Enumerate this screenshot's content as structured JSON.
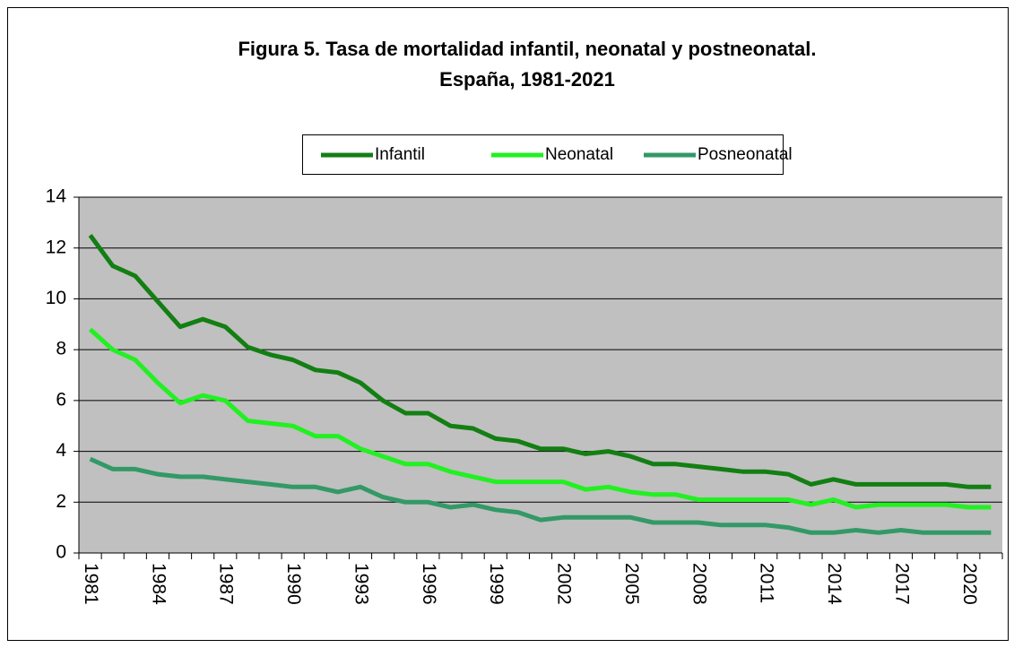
{
  "chart_data": {
    "type": "line",
    "title": [
      "Figura 5. Tasa de mortalidad infantil, neonatal y postneonatal.",
      "España, 1981-2021"
    ],
    "categories": [
      "1981",
      null,
      null,
      "1984",
      null,
      null,
      "1987",
      null,
      null,
      "1990",
      null,
      null,
      "1993",
      null,
      null,
      "1996",
      null,
      null,
      "1999",
      null,
      null,
      "2002",
      null,
      null,
      "2005",
      null,
      null,
      "2008",
      null,
      null,
      "2011",
      null,
      null,
      "2014",
      null,
      null,
      "2017",
      null,
      null,
      "2020",
      null
    ],
    "series": [
      {
        "name": "Infantil",
        "color": "#137f13",
        "values": [
          12.5,
          11.3,
          10.9,
          9.9,
          8.9,
          9.2,
          8.9,
          8.1,
          7.8,
          7.6,
          7.2,
          7.1,
          6.7,
          6.0,
          5.5,
          5.5,
          5.0,
          4.9,
          4.5,
          4.4,
          4.1,
          4.1,
          3.9,
          4.0,
          3.8,
          3.5,
          3.5,
          3.4,
          3.3,
          3.2,
          3.2,
          3.1,
          2.7,
          2.9,
          2.7,
          2.7,
          2.7,
          2.7,
          2.7,
          2.6,
          2.6
        ]
      },
      {
        "name": "Neonatal",
        "color": "#22f022",
        "values": [
          8.8,
          8.0,
          7.6,
          6.7,
          5.9,
          6.2,
          6.0,
          5.2,
          5.1,
          5.0,
          4.6,
          4.6,
          4.1,
          3.8,
          3.5,
          3.5,
          3.2,
          3.0,
          2.8,
          2.8,
          2.8,
          2.8,
          2.5,
          2.6,
          2.4,
          2.3,
          2.3,
          2.1,
          2.1,
          2.1,
          2.1,
          2.1,
          1.9,
          2.1,
          1.8,
          1.9,
          1.9,
          1.9,
          1.9,
          1.8,
          1.8
        ]
      },
      {
        "name": "Posneonatal",
        "color": "#339966",
        "values": [
          3.7,
          3.3,
          3.3,
          3.1,
          3.0,
          3.0,
          2.9,
          2.8,
          2.7,
          2.6,
          2.6,
          2.4,
          2.6,
          2.2,
          2.0,
          2.0,
          1.8,
          1.9,
          1.7,
          1.6,
          1.3,
          1.4,
          1.4,
          1.4,
          1.4,
          1.2,
          1.2,
          1.2,
          1.1,
          1.1,
          1.1,
          1.0,
          0.8,
          0.8,
          0.9,
          0.8,
          0.9,
          0.8,
          0.8,
          0.8,
          0.8
        ]
      }
    ],
    "ylim": [
      0,
      14
    ],
    "yticks": [
      0,
      2,
      4,
      6,
      8,
      10,
      12,
      14
    ],
    "grid": true,
    "legend": "top"
  }
}
